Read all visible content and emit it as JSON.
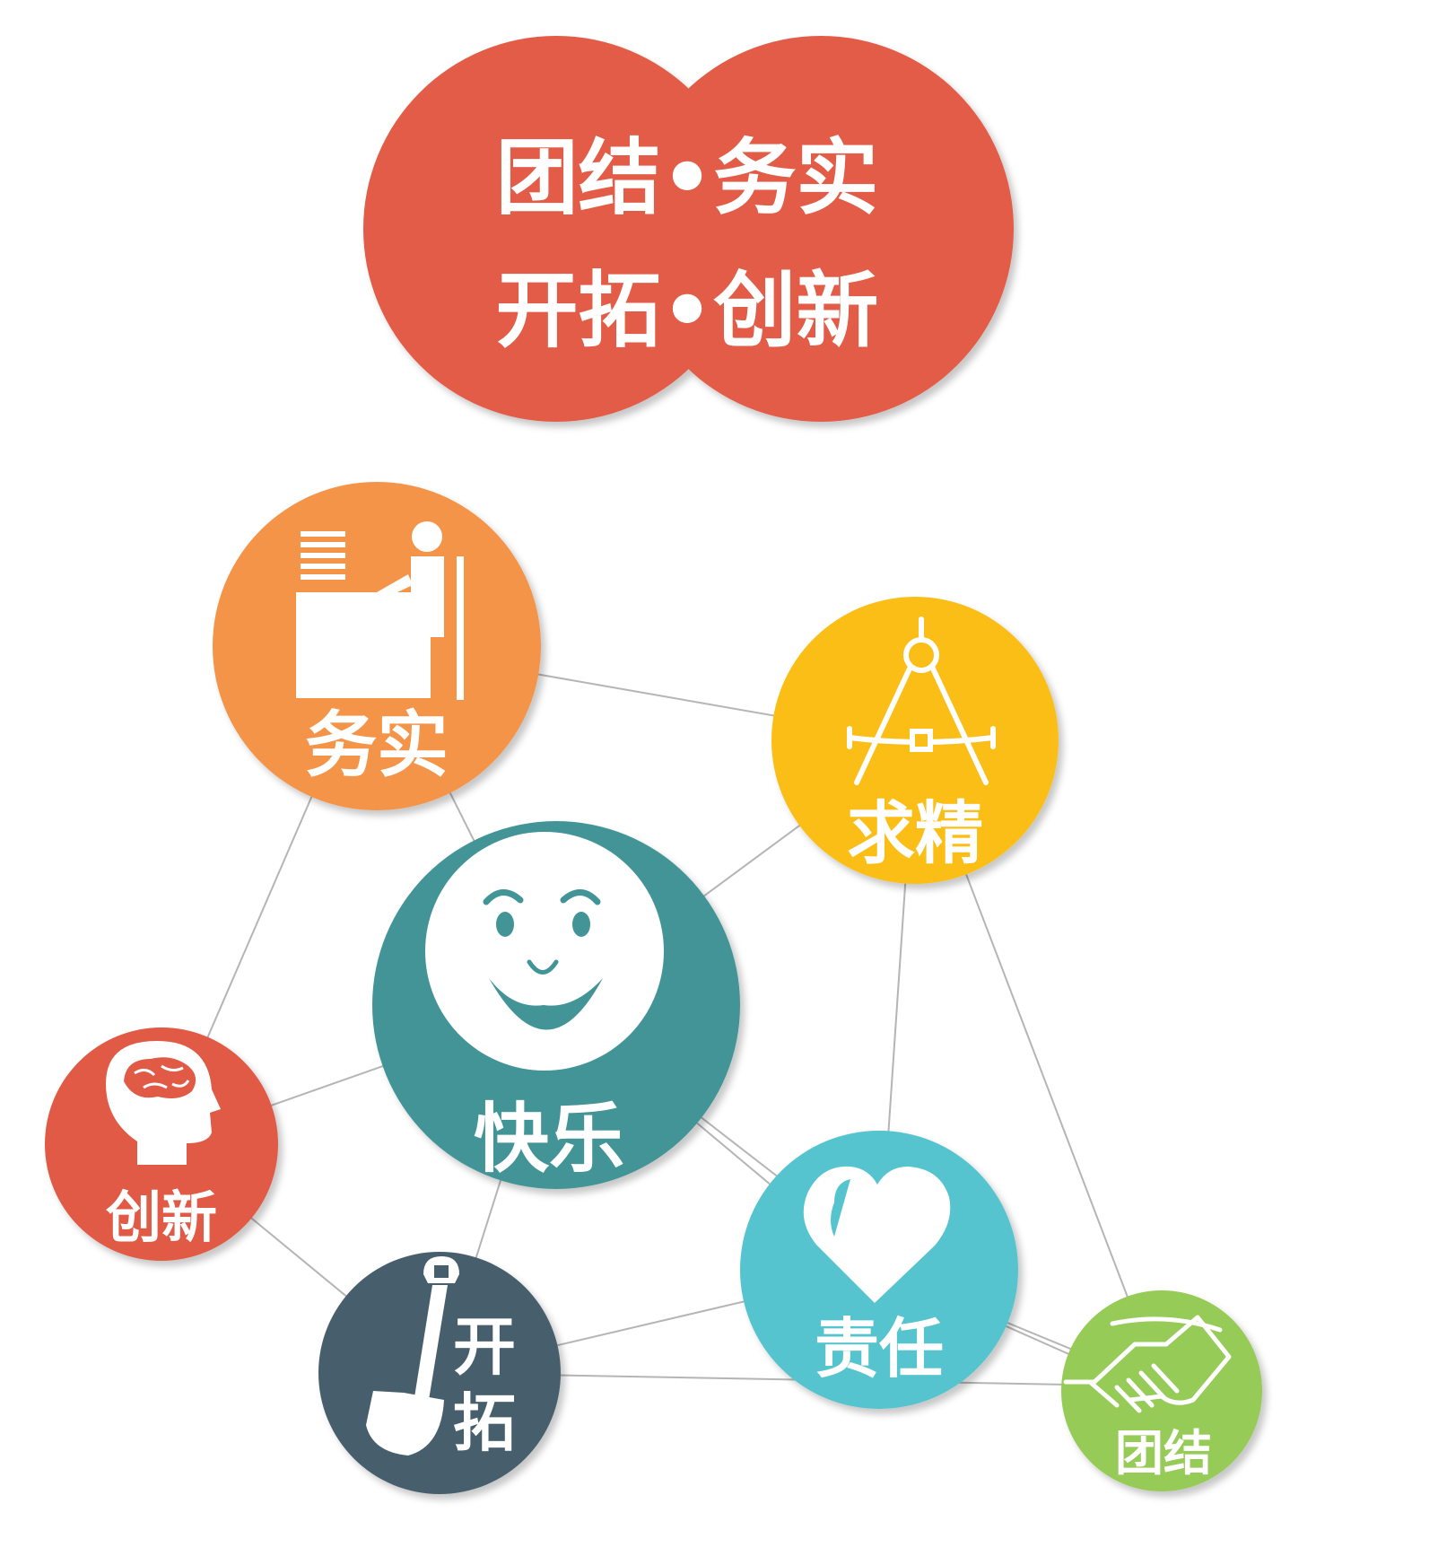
{
  "banner": {
    "line1": "团结•务实",
    "line2": "开拓•创新",
    "color": "#E25B47"
  },
  "nodes": [
    {
      "id": "wushi",
      "label": "务实",
      "icon": "desk-worker-icon",
      "color": "#F4944A"
    },
    {
      "id": "qiujing",
      "label": "求精",
      "icon": "compass-icon",
      "color": "#FBBE16"
    },
    {
      "id": "kuaile",
      "label": "快乐",
      "icon": "smiley-face-icon",
      "color": "#429497"
    },
    {
      "id": "chuangxin",
      "label": "创新",
      "icon": "brain-head-icon",
      "color": "#E05A45"
    },
    {
      "id": "kaituo_1",
      "label": "开",
      "icon": "shovel-icon",
      "color": "#475E6C"
    },
    {
      "id": "kaituo_2",
      "label": "拓"
    },
    {
      "id": "zeren",
      "label": "责任",
      "icon": "heart-icon",
      "color": "#55C4CE"
    },
    {
      "id": "tuanjie",
      "label": "团结",
      "icon": "handshake-icon",
      "color": "#96CB58"
    }
  ],
  "connector_color": "#B5B5B5"
}
